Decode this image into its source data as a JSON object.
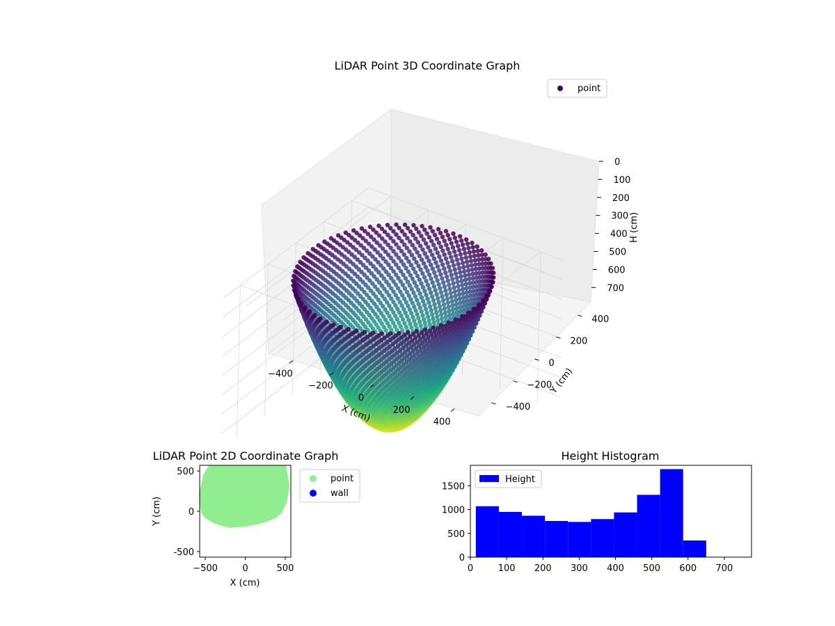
{
  "chart_data": [
    {
      "type": "scatter",
      "projection": "3d",
      "title": "LiDAR Point 3D Coordinate Graph",
      "xlabel": "X (cm)",
      "ylabel": "Y (cm)",
      "zlabel": "H (cm)",
      "x_ticks": [
        -400,
        -200,
        0,
        200,
        400
      ],
      "y_ticks": [
        -400,
        -200,
        0,
        200,
        400
      ],
      "z_ticks": [
        0,
        100,
        200,
        300,
        400,
        500,
        600,
        700
      ],
      "xlim": [
        -520,
        520
      ],
      "ylim": [
        -520,
        520
      ],
      "zlim": [
        0,
        780
      ],
      "z_inverted": true,
      "colormap": "viridis",
      "shape": "inverted dome / bowl of points, rim near H=0 with radius ~430 cm, bottom near H=760 cm at X~0, Y~0",
      "series": [
        {
          "name": "point",
          "color": "#440154"
        }
      ],
      "legend": "upper-right",
      "grid": true
    },
    {
      "type": "scatter",
      "title": "LiDAR Point 2D Coordinate Graph",
      "xlabel": "X (cm)",
      "ylabel": "Y (cm)",
      "x_ticks": [
        -500,
        0,
        500
      ],
      "y_ticks": [
        -500,
        0,
        500
      ],
      "xlim": [
        -570,
        570
      ],
      "ylim": [
        -570,
        570
      ],
      "series": [
        {
          "name": "point",
          "color": "#90ee90"
        },
        {
          "name": "wall",
          "color": "#0000ff"
        }
      ],
      "legend": "outside-right",
      "grid": false
    },
    {
      "type": "bar",
      "subtype": "histogram",
      "title": "Height Histogram",
      "x_ticks": [
        0,
        100,
        200,
        300,
        400,
        500,
        600,
        700
      ],
      "y_ticks": [
        0,
        500,
        1000,
        1500
      ],
      "xlim": [
        0,
        775
      ],
      "ylim": [
        0,
        1930
      ],
      "bin_edges": [
        15,
        78.5,
        142,
        205.5,
        269,
        332.5,
        396,
        459.5,
        523,
        586.5,
        650
      ],
      "values": [
        1070,
        950,
        870,
        760,
        740,
        800,
        940,
        1310,
        1850,
        350
      ],
      "color": "#0000ff",
      "series": [
        {
          "name": "Height",
          "color": "#0000ff"
        }
      ],
      "legend": "upper-left",
      "grid": false
    }
  ]
}
